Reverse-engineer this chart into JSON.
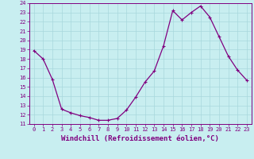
{
  "x": [
    0,
    1,
    2,
    3,
    4,
    5,
    6,
    7,
    8,
    9,
    10,
    11,
    12,
    13,
    14,
    15,
    16,
    17,
    18,
    19,
    20,
    21,
    22,
    23
  ],
  "y": [
    18.9,
    18.0,
    15.8,
    12.6,
    12.2,
    11.9,
    11.7,
    11.4,
    11.4,
    11.6,
    12.5,
    13.9,
    15.5,
    16.7,
    19.4,
    23.2,
    22.2,
    23.0,
    23.7,
    22.5,
    20.4,
    18.3,
    16.8,
    15.7
  ],
  "line_color": "#800080",
  "marker": "+",
  "marker_size": 3,
  "background_color": "#c8eef0",
  "grid_color": "#a8d8dc",
  "xlabel": "Windchill (Refroidissement éolien,°C)",
  "xlim": [
    -0.5,
    23.5
  ],
  "ylim": [
    11,
    24
  ],
  "yticks": [
    11,
    12,
    13,
    14,
    15,
    16,
    17,
    18,
    19,
    20,
    21,
    22,
    23,
    24
  ],
  "xticks": [
    0,
    1,
    2,
    3,
    4,
    5,
    6,
    7,
    8,
    9,
    10,
    11,
    12,
    13,
    14,
    15,
    16,
    17,
    18,
    19,
    20,
    21,
    22,
    23
  ],
  "tick_color": "#800080",
  "tick_fontsize": 5,
  "xlabel_fontsize": 6.5,
  "border_color": "#800080",
  "line_width": 0.9
}
